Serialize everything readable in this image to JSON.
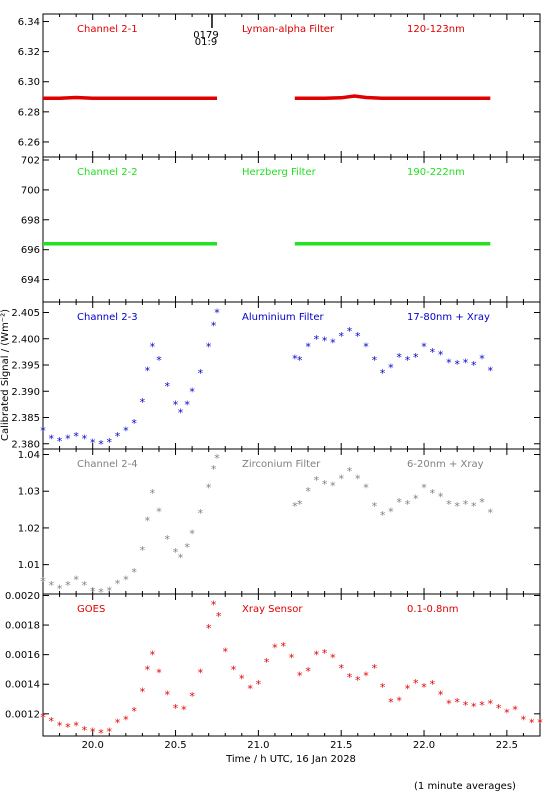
{
  "figure": {
    "xlabel": "Time / h UTC, 16 Jan 2028",
    "ylabel": "Calibrated Signal / (Wm⁻²)",
    "footnote": "(1 minute averages)"
  },
  "chart_data": [
    {
      "type": "line",
      "channel": "Channel 2-1",
      "filter": "Lyman-alpha Filter",
      "band": "120-123nm",
      "color": "#e00000",
      "xlim": [
        19.7,
        22.7
      ],
      "ylim": [
        6.25,
        6.345
      ],
      "yticks": [
        "6.26",
        "6.28",
        "6.30",
        "6.32",
        "6.34"
      ],
      "ytick_values": [
        6.26,
        6.28,
        6.3,
        6.32,
        6.34
      ],
      "marker": {
        "x": 20.72,
        "label_top": "0179",
        "label_bottom": "01:9"
      },
      "segments": [
        {
          "x": [
            19.7,
            19.8,
            19.9,
            20.0,
            20.1,
            20.2,
            20.3,
            20.4,
            20.5,
            20.6,
            20.7,
            20.75
          ],
          "y": [
            6.289,
            6.289,
            6.2895,
            6.289,
            6.289,
            6.289,
            6.289,
            6.289,
            6.289,
            6.289,
            6.289,
            6.289
          ]
        },
        {
          "x": [
            21.22,
            21.3,
            21.4,
            21.5,
            21.58,
            21.65,
            21.75,
            21.85,
            21.95,
            22.05,
            22.15,
            22.25,
            22.4
          ],
          "y": [
            6.289,
            6.289,
            6.289,
            6.2893,
            6.2905,
            6.2895,
            6.289,
            6.289,
            6.289,
            6.289,
            6.289,
            6.289,
            6.289
          ]
        }
      ]
    },
    {
      "type": "line",
      "channel": "Channel 2-2",
      "filter": "Herzberg Filter",
      "band": "190-222nm",
      "color": "#22e022",
      "xlim": [
        19.7,
        22.7
      ],
      "ylim": [
        692.5,
        702.2
      ],
      "yticks": [
        "694",
        "696",
        "698",
        "700",
        "702"
      ],
      "ytick_values": [
        694,
        696,
        698,
        700,
        702
      ],
      "segments": [
        {
          "x": [
            19.7,
            19.9,
            20.1,
            20.3,
            20.5,
            20.75
          ],
          "y": [
            696.4,
            696.4,
            696.4,
            696.4,
            696.4,
            696.4
          ]
        },
        {
          "x": [
            21.22,
            21.5,
            21.8,
            22.1,
            22.4
          ],
          "y": [
            696.4,
            696.4,
            696.4,
            696.4,
            696.4
          ]
        }
      ]
    },
    {
      "type": "scatter",
      "channel": "Channel 2-3",
      "filter": "Aluminium Filter",
      "band": "17-80nm + Xray",
      "color": "#0000cc",
      "xlim": [
        19.7,
        22.7
      ],
      "ylim": [
        2.379,
        2.407
      ],
      "yticks": [
        "2.380",
        "2.385",
        "2.390",
        "2.395",
        "2.400",
        "2.405"
      ],
      "ytick_values": [
        2.38,
        2.385,
        2.39,
        2.395,
        2.4,
        2.405
      ],
      "points": [
        [
          19.7,
          2.3825
        ],
        [
          19.75,
          2.381
        ],
        [
          19.8,
          2.3805
        ],
        [
          19.85,
          2.381
        ],
        [
          19.9,
          2.3815
        ],
        [
          19.95,
          2.381
        ],
        [
          20.0,
          2.3802
        ],
        [
          20.05,
          2.38
        ],
        [
          20.1,
          2.3803
        ],
        [
          20.15,
          2.3815
        ],
        [
          20.2,
          2.3825
        ],
        [
          20.25,
          2.384
        ],
        [
          20.3,
          2.388
        ],
        [
          20.33,
          2.394
        ],
        [
          20.36,
          2.3985
        ],
        [
          20.4,
          2.396
        ],
        [
          20.45,
          2.391
        ],
        [
          20.5,
          2.3875
        ],
        [
          20.53,
          2.386
        ],
        [
          20.57,
          2.3875
        ],
        [
          20.6,
          2.39
        ],
        [
          20.65,
          2.3935
        ],
        [
          20.7,
          2.3985
        ],
        [
          20.73,
          2.4025
        ],
        [
          20.75,
          2.405
        ],
        [
          21.22,
          2.3962
        ],
        [
          21.25,
          2.396
        ],
        [
          21.3,
          2.3985
        ],
        [
          21.35,
          2.4
        ],
        [
          21.4,
          2.3997
        ],
        [
          21.45,
          2.3993
        ],
        [
          21.5,
          2.4005
        ],
        [
          21.55,
          2.4015
        ],
        [
          21.6,
          2.4005
        ],
        [
          21.65,
          2.3985
        ],
        [
          21.7,
          2.396
        ],
        [
          21.75,
          2.3935
        ],
        [
          21.8,
          2.3945
        ],
        [
          21.85,
          2.3965
        ],
        [
          21.9,
          2.396
        ],
        [
          21.95,
          2.3965
        ],
        [
          22.0,
          2.3985
        ],
        [
          22.05,
          2.3975
        ],
        [
          22.1,
          2.397
        ],
        [
          22.15,
          2.3955
        ],
        [
          22.2,
          2.3952
        ],
        [
          22.25,
          2.3955
        ],
        [
          22.3,
          2.395
        ],
        [
          22.35,
          2.3962
        ],
        [
          22.4,
          2.394
        ]
      ]
    },
    {
      "type": "scatter",
      "channel": "Channel 2-4",
      "filter": "Zirconium Filter",
      "band": "6-20nm + Xray",
      "color": "#808080",
      "xlim": [
        19.7,
        22.7
      ],
      "ylim": [
        1.002,
        1.0415
      ],
      "yticks": [
        "1.01",
        "1.02",
        "1.03",
        "1.04"
      ],
      "ytick_values": [
        1.01,
        1.02,
        1.03,
        1.04
      ],
      "points": [
        [
          19.7,
          1.0055
        ],
        [
          19.75,
          1.0045
        ],
        [
          19.8,
          1.0035
        ],
        [
          19.85,
          1.0045
        ],
        [
          19.9,
          1.006
        ],
        [
          19.95,
          1.0045
        ],
        [
          20.0,
          1.0028
        ],
        [
          20.05,
          1.0025
        ],
        [
          20.1,
          1.003
        ],
        [
          20.15,
          1.0048
        ],
        [
          20.2,
          1.006
        ],
        [
          20.25,
          1.008
        ],
        [
          20.3,
          1.014
        ],
        [
          20.33,
          1.022
        ],
        [
          20.36,
          1.0295
        ],
        [
          20.4,
          1.0245
        ],
        [
          20.45,
          1.017
        ],
        [
          20.5,
          1.0135
        ],
        [
          20.53,
          1.012
        ],
        [
          20.57,
          1.0148
        ],
        [
          20.6,
          1.0185
        ],
        [
          20.65,
          1.024
        ],
        [
          20.7,
          1.031
        ],
        [
          20.73,
          1.036
        ],
        [
          20.75,
          1.039
        ],
        [
          21.22,
          1.026
        ],
        [
          21.25,
          1.0265
        ],
        [
          21.3,
          1.03
        ],
        [
          21.35,
          1.033
        ],
        [
          21.4,
          1.032
        ],
        [
          21.45,
          1.0315
        ],
        [
          21.5,
          1.0335
        ],
        [
          21.55,
          1.0355
        ],
        [
          21.6,
          1.0335
        ],
        [
          21.65,
          1.031
        ],
        [
          21.7,
          1.026
        ],
        [
          21.75,
          1.0235
        ],
        [
          21.8,
          1.0245
        ],
        [
          21.85,
          1.027
        ],
        [
          21.9,
          1.0265
        ],
        [
          21.95,
          1.028
        ],
        [
          22.0,
          1.031
        ],
        [
          22.05,
          1.0295
        ],
        [
          22.1,
          1.0285
        ],
        [
          22.15,
          1.0265
        ],
        [
          22.2,
          1.026
        ],
        [
          22.25,
          1.0265
        ],
        [
          22.3,
          1.026
        ],
        [
          22.35,
          1.027
        ],
        [
          22.4,
          1.0242
        ]
      ]
    },
    {
      "type": "scatter",
      "channel": "GOES",
      "filter": "Xray Sensor",
      "band": "0.1-0.8nm",
      "color": "#e00000",
      "xlim": [
        19.7,
        22.7
      ],
      "ylim": [
        0.00105,
        0.00201
      ],
      "yticks": [
        "0.0012",
        "0.0014",
        "0.0016",
        "0.0018",
        "0.0020"
      ],
      "ytick_values": [
        0.0012,
        0.0014,
        0.0016,
        0.0018,
        0.002
      ],
      "xticks": [
        "20.0",
        "20.5",
        "21.0",
        "21.5",
        "22.0",
        "22.5"
      ],
      "xtick_values": [
        20.0,
        20.5,
        21.0,
        21.5,
        22.0,
        22.5
      ],
      "points": [
        [
          19.7,
          0.00118
        ],
        [
          19.75,
          0.00115
        ],
        [
          19.8,
          0.00112
        ],
        [
          19.85,
          0.00111
        ],
        [
          19.9,
          0.00112
        ],
        [
          19.95,
          0.00109
        ],
        [
          20.0,
          0.00108
        ],
        [
          20.05,
          0.00107
        ],
        [
          20.1,
          0.00108
        ],
        [
          20.15,
          0.00114
        ],
        [
          20.2,
          0.00116
        ],
        [
          20.25,
          0.00122
        ],
        [
          20.3,
          0.00135
        ],
        [
          20.33,
          0.0015
        ],
        [
          20.36,
          0.0016
        ],
        [
          20.4,
          0.00148
        ],
        [
          20.45,
          0.00133
        ],
        [
          20.5,
          0.00124
        ],
        [
          20.55,
          0.00123
        ],
        [
          20.6,
          0.00132
        ],
        [
          20.65,
          0.00148
        ],
        [
          20.7,
          0.00178
        ],
        [
          20.73,
          0.00194
        ],
        [
          20.76,
          0.00186
        ],
        [
          20.8,
          0.00162
        ],
        [
          20.85,
          0.0015
        ],
        [
          20.9,
          0.00144
        ],
        [
          20.95,
          0.00137
        ],
        [
          21.0,
          0.0014
        ],
        [
          21.05,
          0.00155
        ],
        [
          21.1,
          0.00165
        ],
        [
          21.15,
          0.00166
        ],
        [
          21.2,
          0.00158
        ],
        [
          21.25,
          0.00146
        ],
        [
          21.3,
          0.00149
        ],
        [
          21.35,
          0.0016
        ],
        [
          21.4,
          0.00161
        ],
        [
          21.45,
          0.00158
        ],
        [
          21.5,
          0.00151
        ],
        [
          21.55,
          0.00145
        ],
        [
          21.6,
          0.00143
        ],
        [
          21.65,
          0.00146
        ],
        [
          21.7,
          0.00151
        ],
        [
          21.75,
          0.00138
        ],
        [
          21.8,
          0.00128
        ],
        [
          21.85,
          0.00129
        ],
        [
          21.9,
          0.00137
        ],
        [
          21.95,
          0.00141
        ],
        [
          22.0,
          0.00138
        ],
        [
          22.05,
          0.0014
        ],
        [
          22.1,
          0.00133
        ],
        [
          22.15,
          0.00127
        ],
        [
          22.2,
          0.00128
        ],
        [
          22.25,
          0.00126
        ],
        [
          22.3,
          0.00125
        ],
        [
          22.35,
          0.00126
        ],
        [
          22.4,
          0.00127
        ],
        [
          22.45,
          0.00124
        ],
        [
          22.5,
          0.00121
        ],
        [
          22.55,
          0.00123
        ],
        [
          22.6,
          0.00116
        ],
        [
          22.65,
          0.00114
        ],
        [
          22.7,
          0.00114
        ]
      ]
    }
  ]
}
